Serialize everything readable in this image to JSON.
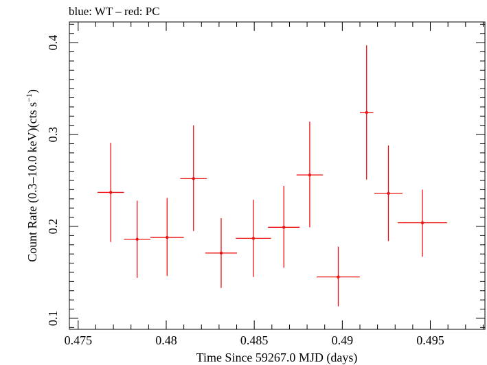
{
  "chart_data": {
    "type": "scatter",
    "title": "blue: WT – red: PC",
    "xlabel": "Time Since 59267.0 MJD (days)",
    "ylabel_main": "Count Rate (0.3–10.0 keV)(cts s",
    "ylabel_sup": "−1",
    "ylabel_close": ")",
    "xlim": [
      0.4745,
      0.4981
    ],
    "ylim": [
      0.088,
      0.4225
    ],
    "x_major_ticks": [
      0.475,
      0.48,
      0.485,
      0.49,
      0.495
    ],
    "x_tick_labels": [
      "0.475",
      "0.48",
      "0.485",
      "0.49",
      "0.495"
    ],
    "y_major_ticks": [
      0.1,
      0.2,
      0.3,
      0.4
    ],
    "y_tick_labels": [
      "0.1",
      "0.2",
      "0.3",
      "0.4"
    ],
    "grid": false,
    "series": [
      {
        "color": "#ee1111",
        "points": [
          {
            "x": 0.47685,
            "xerr": 0.00075,
            "y": 0.237,
            "yerr_lo": 0.054,
            "yerr_hi": 0.054
          },
          {
            "x": 0.47835,
            "xerr": 0.00075,
            "y": 0.186,
            "yerr_lo": 0.042,
            "yerr_hi": 0.042
          },
          {
            "x": 0.48005,
            "xerr": 0.00095,
            "y": 0.188,
            "yerr_lo": 0.042,
            "yerr_hi": 0.043
          },
          {
            "x": 0.48155,
            "xerr": 0.00075,
            "y": 0.252,
            "yerr_lo": 0.057,
            "yerr_hi": 0.058
          },
          {
            "x": 0.48312,
            "xerr": 0.0009,
            "y": 0.171,
            "yerr_lo": 0.038,
            "yerr_hi": 0.038
          },
          {
            "x": 0.48495,
            "xerr": 0.001,
            "y": 0.187,
            "yerr_lo": 0.042,
            "yerr_hi": 0.042
          },
          {
            "x": 0.48668,
            "xerr": 0.0009,
            "y": 0.199,
            "yerr_lo": 0.044,
            "yerr_hi": 0.045
          },
          {
            "x": 0.48815,
            "xerr": 0.00075,
            "y": 0.256,
            "yerr_lo": 0.057,
            "yerr_hi": 0.058
          },
          {
            "x": 0.48977,
            "xerr": 0.00122,
            "y": 0.145,
            "yerr_lo": 0.032,
            "yerr_hi": 0.033
          },
          {
            "x": 0.49138,
            "xerr": 0.00038,
            "y": 0.324,
            "yerr_lo": 0.073,
            "yerr_hi": 0.073
          },
          {
            "x": 0.49262,
            "xerr": 0.0008,
            "y": 0.236,
            "yerr_lo": 0.052,
            "yerr_hi": 0.052
          },
          {
            "x": 0.49455,
            "xerr": 0.0014,
            "y": 0.204,
            "yerr_lo": 0.037,
            "yerr_hi": 0.036
          }
        ]
      }
    ]
  }
}
